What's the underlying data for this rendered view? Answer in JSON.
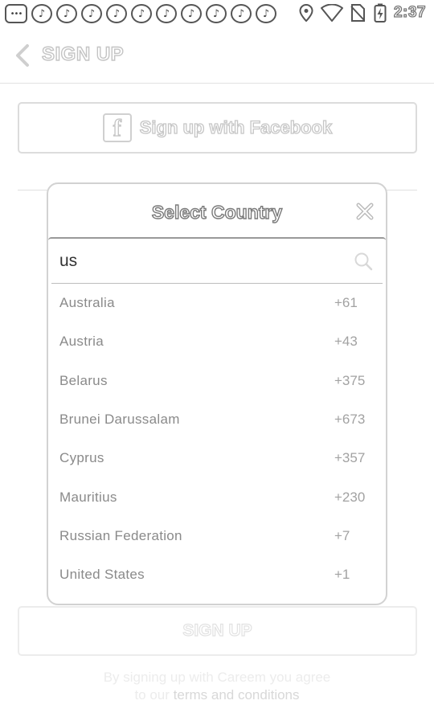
{
  "status_bar": {
    "notification_icons": [
      "more-icon",
      "music-note-icon",
      "music-note-icon",
      "music-note-icon",
      "music-note-icon",
      "music-note-icon",
      "music-note-icon",
      "music-note-icon",
      "music-note-icon",
      "music-note-icon",
      "music-note-icon"
    ],
    "time": "2:37"
  },
  "header": {
    "title": "SIGN UP"
  },
  "facebook_button": {
    "icon_glyph": "f",
    "label": "Sign up with Facebook"
  },
  "dialog": {
    "title": "Select Country",
    "search": {
      "value": "us"
    },
    "countries": [
      {
        "name": "Australia",
        "code": "+61"
      },
      {
        "name": "Austria",
        "code": "+43"
      },
      {
        "name": "Belarus",
        "code": "+375"
      },
      {
        "name": "Brunei Darussalam",
        "code": "+673"
      },
      {
        "name": "Cyprus",
        "code": "+357"
      },
      {
        "name": "Mauritius",
        "code": "+230"
      },
      {
        "name": "Russian Federation",
        "code": "+7"
      },
      {
        "name": "United States",
        "code": "+1"
      }
    ]
  },
  "signup_button": {
    "label": "SIGN UP"
  },
  "terms": {
    "line1": "By signing up with Careem you agree",
    "line2_prefix": "to our ",
    "link": "terms and conditions"
  }
}
